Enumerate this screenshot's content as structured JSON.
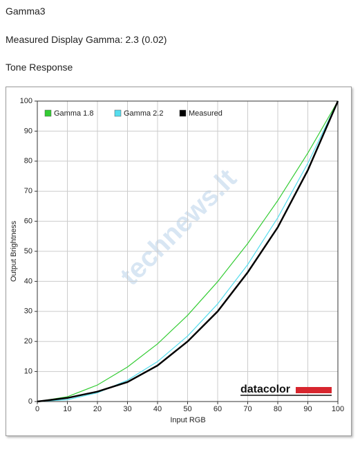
{
  "header": {
    "title": "Gamma3",
    "measurement": "Measured Display Gamma: 2.3 (0.02)",
    "section": "Tone Response"
  },
  "chart_data": {
    "type": "line",
    "x_label": "Input RGB",
    "y_label": "Output Brightness",
    "x": [
      0,
      10,
      20,
      30,
      40,
      50,
      60,
      70,
      80,
      90,
      100
    ],
    "series": [
      {
        "name": "Gamma 1.8",
        "color": "#33cc33",
        "values": [
          0,
          1.6,
          5.5,
          11.5,
          19.2,
          28.7,
          39.9,
          52.6,
          66.9,
          82.7,
          100
        ]
      },
      {
        "name": "Gamma 2.2",
        "color": "#55ddee",
        "values": [
          0,
          0.6,
          2.9,
          7.1,
          13.3,
          21.8,
          32.5,
          45.6,
          61.2,
          79.3,
          100
        ]
      },
      {
        "name": "Measured",
        "color": "#000000",
        "values": [
          0,
          1.2,
          3.3,
          6.5,
          12,
          20,
          30,
          43,
          58,
          77,
          100
        ]
      }
    ],
    "xlim": [
      0,
      100
    ],
    "ylim": [
      0,
      100
    ],
    "xticks": [
      0,
      10,
      20,
      30,
      40,
      50,
      60,
      70,
      80,
      90,
      100
    ],
    "yticks": [
      0,
      10,
      20,
      30,
      40,
      50,
      60,
      70,
      80,
      90,
      100
    ],
    "grid": true,
    "legend": "top-left",
    "logo_text": "datacolor",
    "watermark": "technews.lt"
  }
}
